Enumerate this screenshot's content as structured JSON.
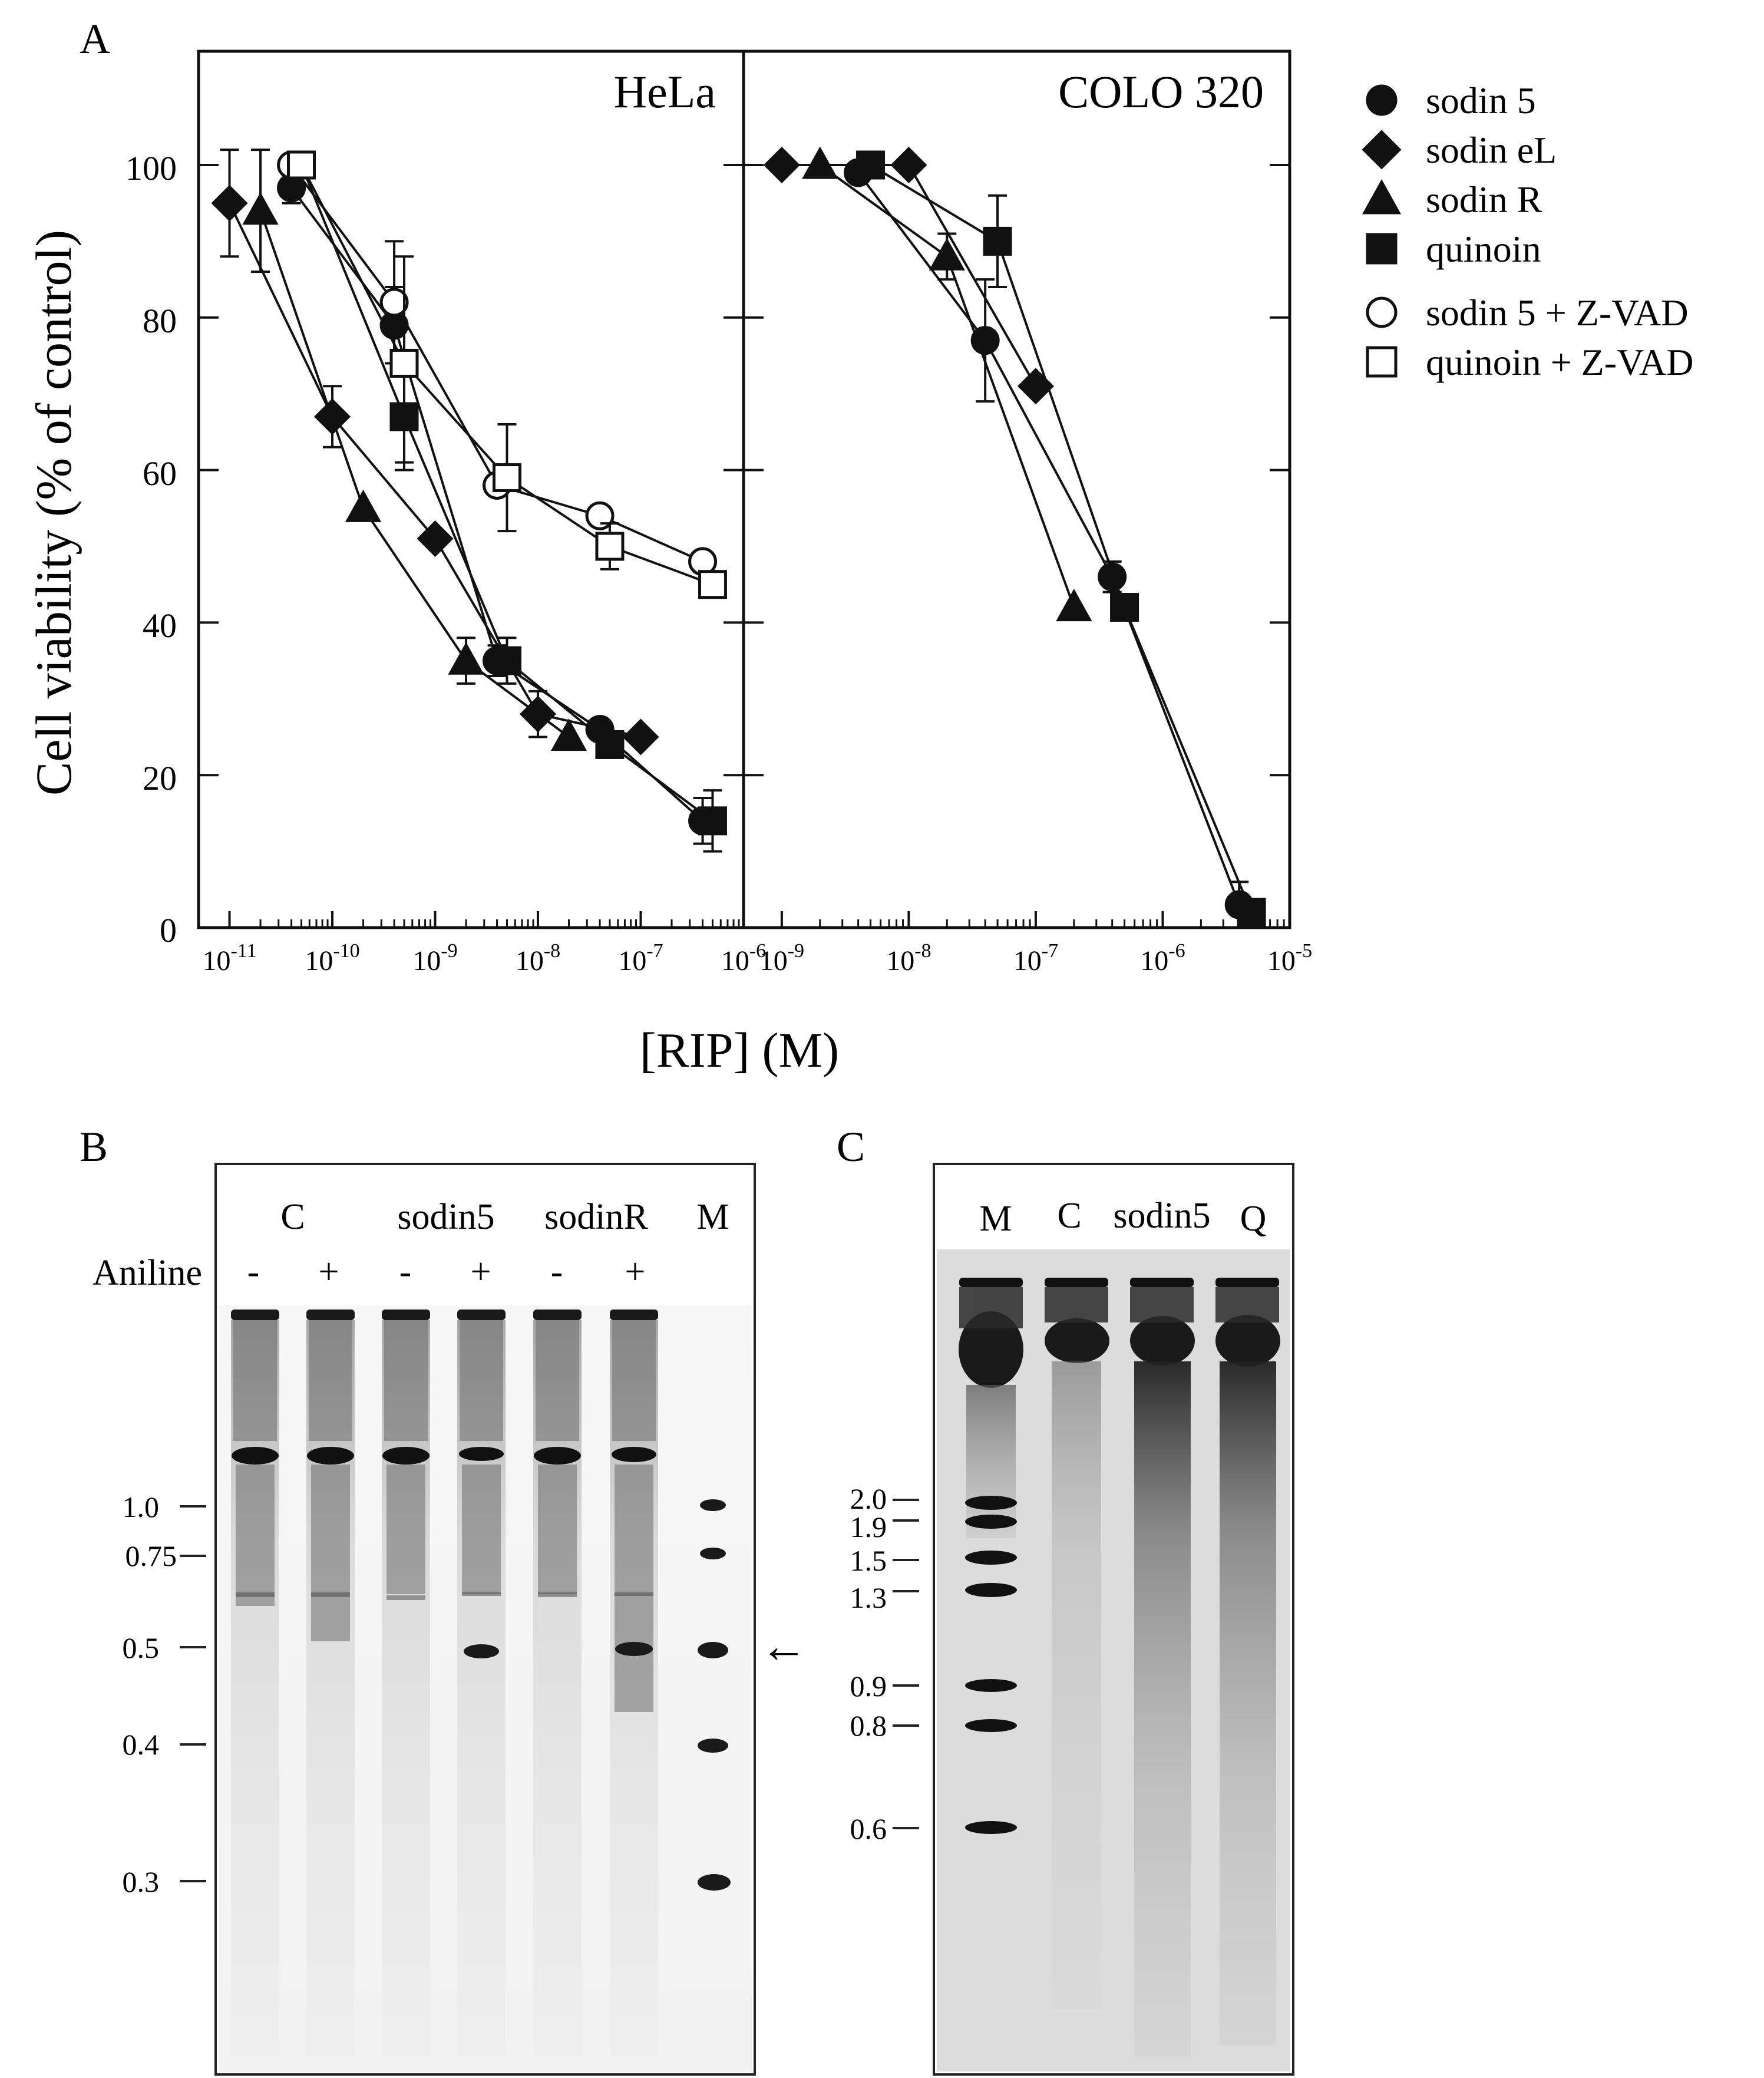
{
  "panelA": {
    "letter": "A",
    "ylabel": "Cell viability (% of control)",
    "xlabel": "[RIP] (M)",
    "yticks": [
      "0",
      "20",
      "40",
      "60",
      "80",
      "100"
    ],
    "legend": [
      {
        "label": "sodin 5",
        "marker": "circle",
        "filled": true
      },
      {
        "label": "sodin eL",
        "marker": "diamond",
        "filled": true
      },
      {
        "label": "sodin R",
        "marker": "triangle",
        "filled": true
      },
      {
        "label": "quinoin",
        "marker": "square",
        "filled": true
      },
      {
        "label": "sodin 5 + Z-VAD",
        "marker": "circle",
        "filled": false
      },
      {
        "label": "quinoin + Z-VAD",
        "marker": "square",
        "filled": false
      }
    ]
  },
  "panelB": {
    "letter": "B",
    "lane_groups": [
      "C",
      "sodin5",
      "sodinR",
      "M"
    ],
    "aniline_label": "Aniline",
    "aniline_marks": [
      "-",
      "+",
      "-",
      "+",
      "-",
      "+"
    ],
    "size_markers": [
      "1.0",
      "0.75",
      "0.5",
      "0.4",
      "0.3"
    ],
    "arrow": "←"
  },
  "panelC": {
    "letter": "C",
    "lanes": [
      "M",
      "C",
      "sodin5",
      "Q"
    ],
    "size_markers": [
      "2.0",
      "1.9",
      "1.5",
      "1.3",
      "0.9",
      "0.8",
      "0.6"
    ]
  },
  "chart_data": [
    {
      "type": "line",
      "title": "HeLa",
      "xscale": "log",
      "xlabel": "[RIP] (M)",
      "ylabel": "Cell viability (% of control)",
      "xlim": [
        5e-12,
        1e-06
      ],
      "ylim": [
        0,
        100
      ],
      "xtick_labels": [
        "10-11",
        "10-10",
        "10-9",
        "10-8",
        "10-7",
        "10-6"
      ],
      "series": [
        {
          "name": "sodin eL",
          "marker": "diamond",
          "filled": true,
          "x": [
            1e-11,
            1e-10,
            1e-09,
            1e-08,
            1e-07
          ],
          "y": [
            95,
            67,
            51,
            28,
            25
          ],
          "err": [
            7,
            4,
            0,
            3,
            0
          ]
        },
        {
          "name": "sodin R",
          "marker": "triangle",
          "filled": true,
          "x": [
            2e-11,
            2e-10,
            2e-09,
            2e-08
          ],
          "y": [
            94,
            55,
            35,
            25
          ],
          "err": [
            8,
            0,
            3,
            0
          ]
        },
        {
          "name": "sodin 5",
          "marker": "circle",
          "filled": true,
          "x": [
            4e-11,
            4e-10,
            4e-09,
            4e-08,
            4e-07
          ],
          "y": [
            97,
            79,
            35,
            26,
            14
          ],
          "err": [
            2,
            5,
            2,
            0,
            3
          ]
        },
        {
          "name": "quinoin",
          "marker": "square",
          "filled": true,
          "x": [
            5e-11,
            5e-10,
            5e-09,
            5e-08,
            5e-07
          ],
          "y": [
            100,
            67,
            35,
            24,
            14
          ],
          "err": [
            0,
            6,
            3,
            0,
            4
          ]
        },
        {
          "name": "sodin 5 + Z-VAD",
          "marker": "circle",
          "filled": false,
          "x": [
            4e-11,
            4e-10,
            4e-09,
            4e-08,
            4e-07
          ],
          "y": [
            100,
            82,
            58,
            54,
            48
          ],
          "err": [
            0,
            8,
            0,
            0,
            0
          ]
        },
        {
          "name": "quinoin + Z-VAD",
          "marker": "square",
          "filled": false,
          "x": [
            5e-11,
            5e-10,
            5e-09,
            5e-08,
            5e-07
          ],
          "y": [
            100,
            74,
            59,
            50,
            45
          ],
          "err": [
            0,
            14,
            7,
            3,
            0
          ]
        }
      ]
    },
    {
      "type": "line",
      "title": "COLO 320",
      "xscale": "log",
      "xlabel": "[RIP] (M)",
      "ylabel": "Cell viability (% of control)",
      "xlim": [
        5e-10,
        1e-05
      ],
      "ylim": [
        0,
        100
      ],
      "xtick_labels": [
        "10-9",
        "10-8",
        "10-7",
        "10-6",
        "10-5"
      ],
      "series": [
        {
          "name": "sodin eL",
          "marker": "diamond",
          "filled": true,
          "x": [
            1e-09,
            1e-08,
            1e-07
          ],
          "y": [
            100,
            100,
            71
          ],
          "err": [
            0,
            0,
            0
          ]
        },
        {
          "name": "sodin R",
          "marker": "triangle",
          "filled": true,
          "x": [
            2e-09,
            2e-08,
            2e-07
          ],
          "y": [
            100,
            88,
            42
          ],
          "err": [
            0,
            3,
            0
          ]
        },
        {
          "name": "sodin 5",
          "marker": "circle",
          "filled": true,
          "x": [
            4e-09,
            4e-08,
            4e-07,
            4e-06
          ],
          "y": [
            99,
            77,
            46,
            3
          ],
          "err": [
            0,
            8,
            2,
            3
          ]
        },
        {
          "name": "quinoin",
          "marker": "square",
          "filled": true,
          "x": [
            5e-09,
            5e-08,
            5e-07,
            5e-06
          ],
          "y": [
            100,
            90,
            42,
            2
          ],
          "err": [
            0,
            6,
            0,
            0
          ]
        }
      ]
    }
  ]
}
